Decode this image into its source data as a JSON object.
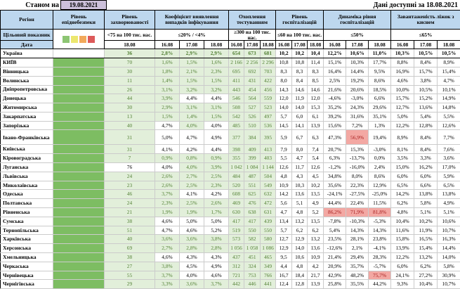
{
  "top": {
    "as_of_label": "Станом на",
    "as_of_date": "19.08.2021",
    "available_label": "Дані доступні за 18.08.2021"
  },
  "colors": {
    "header_blue": "#bdd7ee",
    "purple_date_cell": "#ccc0da",
    "green_cell_bg": "#e2efda",
    "green_cell_text": "#538135",
    "epid_column_green": "#7dbd62",
    "red_cell_bg": "#f3a8a3",
    "red_cell_text": "#a61c1c"
  },
  "table": {
    "region_header": "Регіон",
    "target_header": "Цільовий показник",
    "date_header": "Дата",
    "epid_legend_colors": [
      "#8dc573",
      "#ece76f",
      "#f2a95b",
      "#dd5a5a"
    ],
    "groups": [
      {
        "label": "Рівень епіднебезпеки",
        "target": "",
        "dates": []
      },
      {
        "label": "Рівень захворюваності",
        "target": "<75 на 100 тис. нас.",
        "dates": [
          "18.08"
        ]
      },
      {
        "label": "Коефіцієнт виявлення випадків інфікування",
        "target": "≤20% / <4%",
        "dates": [
          "16.08",
          "17.08",
          "18.08"
        ]
      },
      {
        "label": "Охоплення тестуванням",
        "target": "≥300 на 100 тис. нас.",
        "dates": [
          "16.08",
          "17.08",
          "18.08"
        ]
      },
      {
        "label": "Рівень госпіталізацій",
        "target": "≤60 на 100 тис. нас.",
        "dates": [
          "16.08",
          "17.08",
          "18.08"
        ]
      },
      {
        "label": "Динаміка рівня госпіталізацій",
        "target": "≤50%",
        "dates": [
          "16.08",
          "17.08",
          "18.08"
        ]
      },
      {
        "label": "Завантаженість ліжок з киснем",
        "target": "≤65%",
        "dates": [
          "16.08",
          "17.08",
          "18.08"
        ]
      }
    ],
    "rows": [
      {
        "region": "Україна",
        "bold": true,
        "epid": false,
        "zakhv": "36",
        "zakhv_bg": "g",
        "koef": [
          "2,8%",
          "2,9%",
          "2,9%"
        ],
        "koef_bg": "ggg",
        "test": [
          "654",
          "673",
          "681"
        ],
        "hosp": [
          "10,2",
          "10,2",
          "10,4"
        ],
        "dyn": [
          "12,2%",
          "10,6%",
          "11,0%"
        ],
        "dyn_bg": "www",
        "beds": [
          "10,3%",
          "10,5%",
          "10,5%"
        ]
      },
      {
        "region": "КИЇВ",
        "epid": true,
        "zakhv": "70",
        "zakhv_bg": "g",
        "koef": [
          "1,6%",
          "1,5%",
          "1,6%"
        ],
        "koef_bg": "ggg",
        "test": [
          "2 166",
          "2 256",
          "2 296"
        ],
        "hosp": [
          "10,8",
          "10,8",
          "11,4"
        ],
        "dyn": [
          "15,1%",
          "10,3%",
          "17,7%"
        ],
        "dyn_bg": "www",
        "beds": [
          "8,8%",
          "8,4%",
          "8,9%"
        ]
      },
      {
        "region": "Вінницька",
        "epid": true,
        "zakhv": "30",
        "zakhv_bg": "g",
        "koef": [
          "1,8%",
          "2,1%",
          "2,3%"
        ],
        "koef_bg": "ggg",
        "test": [
          "695",
          "692",
          "703"
        ],
        "hosp": [
          "8,3",
          "8,3",
          "8,3"
        ],
        "dyn": [
          "16,4%",
          "14,4%",
          "9,5%"
        ],
        "dyn_bg": "www",
        "beds": [
          "16,9%",
          "15,7%",
          "15,4%"
        ]
      },
      {
        "region": "Волинська",
        "epid": true,
        "zakhv": "11",
        "zakhv_bg": "g",
        "koef": [
          "1,4%",
          "1,5%",
          "1,5%"
        ],
        "koef_bg": "ggg",
        "test": [
          "411",
          "431",
          "422"
        ],
        "hosp": [
          "8,0",
          "8,4",
          "8,5"
        ],
        "dyn": [
          "2,5%",
          "19,2%",
          "8,6%"
        ],
        "dyn_bg": "www",
        "beds": [
          "4,6%",
          "3,8%",
          "4,7%"
        ]
      },
      {
        "region": "Дніпропетровська",
        "epid": true,
        "zakhv": "26",
        "zakhv_bg": "g",
        "koef": [
          "3,1%",
          "3,2%",
          "3,2%"
        ],
        "koef_bg": "ggg",
        "test": [
          "443",
          "454",
          "456"
        ],
        "hosp": [
          "14,3",
          "14,6",
          "14,6"
        ],
        "dyn": [
          "21,6%",
          "20,6%",
          "18,5%"
        ],
        "dyn_bg": "www",
        "beds": [
          "10,0%",
          "10,5%",
          "10,1%"
        ]
      },
      {
        "region": "Донецька",
        "epid": true,
        "zakhv": "44",
        "zakhv_bg": "g",
        "koef": [
          "3,9%",
          "4,4%",
          "4,4%"
        ],
        "koef_bg": "gww",
        "test": [
          "546",
          "564",
          "559"
        ],
        "hosp": [
          "12,0",
          "11,9",
          "12,0"
        ],
        "dyn": [
          "-4,6%",
          "-3,0%",
          "6,6%"
        ],
        "dyn_bg": "www",
        "beds": [
          "15,7%",
          "15,2%",
          "14,9%"
        ]
      },
      {
        "region": "Житомирська",
        "epid": true,
        "zakhv": "30",
        "zakhv_bg": "g",
        "koef": [
          "2,9%",
          "3,1%",
          "3,1%"
        ],
        "koef_bg": "ggg",
        "test": [
          "508",
          "527",
          "523"
        ],
        "hosp": [
          "14,0",
          "14,0",
          "15,3"
        ],
        "dyn": [
          "35,2%",
          "24,3%",
          "29,6%"
        ],
        "dyn_bg": "www",
        "beds": [
          "12,7%",
          "13,6%",
          "14,8%"
        ]
      },
      {
        "region": "Закарпатська",
        "epid": true,
        "zakhv": "13",
        "zakhv_bg": "g",
        "koef": [
          "1,5%",
          "1,4%",
          "1,5%"
        ],
        "koef_bg": "ggg",
        "test": [
          "542",
          "526",
          "497"
        ],
        "hosp": [
          "5,7",
          "6,0",
          "6,1"
        ],
        "dyn": [
          "39,2%",
          "31,6%",
          "35,1%"
        ],
        "dyn_bg": "www",
        "beds": [
          "5,0%",
          "5,4%",
          "5,5%"
        ]
      },
      {
        "region": "Запорізька",
        "epid": true,
        "zakhv": "40",
        "zakhv_bg": "g",
        "koef": [
          "4,7%",
          "4,0%",
          "4,0%"
        ],
        "koef_bg": "wgw",
        "test": [
          "485",
          "510",
          "536"
        ],
        "hosp": [
          "14,5",
          "14,1",
          "13,9"
        ],
        "dyn": [
          "15,6%",
          "7,2%",
          "1,3%"
        ],
        "dyn_bg": "www",
        "beds": [
          "12,2%",
          "12,8%",
          "12,6%"
        ]
      },
      {
        "region": "Івано-Франківська",
        "tall": true,
        "epid": true,
        "zakhv": "31",
        "zakhv_bg": "g",
        "koef": [
          "5,0%",
          "4,7%",
          "4,9%"
        ],
        "koef_bg": "www",
        "test": [
          "377",
          "384",
          "395"
        ],
        "hosp": [
          "5,9",
          "6,7",
          "6,3"
        ],
        "dyn": [
          "47,3%",
          "56,9%",
          "19,4%"
        ],
        "dyn_bg": "wrw",
        "beds": [
          "8,9%",
          "8,4%",
          "7,7%"
        ]
      },
      {
        "region": "Київська",
        "epid": true,
        "zakhv": "31",
        "zakhv_bg": "g",
        "koef": [
          "4,1%",
          "4,2%",
          "4,4%"
        ],
        "koef_bg": "www",
        "test": [
          "398",
          "409",
          "413"
        ],
        "hosp": [
          "7,9",
          "8,0",
          "7,4"
        ],
        "dyn": [
          "20,7%",
          "15,3%",
          "-3,0%"
        ],
        "dyn_bg": "www",
        "beds": [
          "8,1%",
          "8,4%",
          "7,6%"
        ]
      },
      {
        "region": "Кіровоградська",
        "epid": true,
        "zakhv": "7",
        "zakhv_bg": "g",
        "koef": [
          "0,9%",
          "0,8%",
          "0,9%"
        ],
        "koef_bg": "ggg",
        "test": [
          "355",
          "399",
          "403"
        ],
        "hosp": [
          "5,5",
          "4,7",
          "5,4"
        ],
        "dyn": [
          "6,3%",
          "-13,7%",
          "0,0%"
        ],
        "dyn_bg": "www",
        "beds": [
          "3,5%",
          "3,3%",
          "3,6%"
        ]
      },
      {
        "region": "Луганська",
        "epid": true,
        "zakhv": "76",
        "zakhv_bg": "w",
        "koef": [
          "4,0%",
          "4,0%",
          "3,9%"
        ],
        "koef_bg": "wgg",
        "test": [
          "1 042",
          "1 084",
          "1 144"
        ],
        "hosp": [
          "12,6",
          "11,7",
          "12,6"
        ],
        "dyn": [
          "-1,2%",
          "-16,0%",
          "2,4%"
        ],
        "dyn_bg": "www",
        "beds": [
          "15,0%",
          "16,2%",
          "17,0%"
        ]
      },
      {
        "region": "Львівська",
        "epid": true,
        "zakhv": "24",
        "zakhv_bg": "g",
        "koef": [
          "2,6%",
          "2,7%",
          "2,5%"
        ],
        "koef_bg": "ggg",
        "test": [
          "484",
          "487",
          "504"
        ],
        "hosp": [
          "4,8",
          "4,3",
          "4,5"
        ],
        "dyn": [
          "34,8%",
          "8,0%",
          "8,6%"
        ],
        "dyn_bg": "www",
        "beds": [
          "6,0%",
          "6,0%",
          "5,9%"
        ]
      },
      {
        "region": "Миколаївська",
        "epid": true,
        "zakhv": "23",
        "zakhv_bg": "g",
        "koef": [
          "2,6%",
          "2,5%",
          "2,3%"
        ],
        "koef_bg": "ggg",
        "test": [
          "520",
          "551",
          "549"
        ],
        "hosp": [
          "10,9",
          "10,3",
          "10,2"
        ],
        "dyn": [
          "35,6%",
          "22,3%",
          "12,9%"
        ],
        "dyn_bg": "www",
        "beds": [
          "6,5%",
          "6,6%",
          "6,5%"
        ]
      },
      {
        "region": "Одеська",
        "epid": true,
        "zakhv": "46",
        "zakhv_bg": "g",
        "koef": [
          "3,7%",
          "4,1%",
          "4,2%"
        ],
        "koef_bg": "gww",
        "test": [
          "608",
          "625",
          "632"
        ],
        "hosp": [
          "14,2",
          "13,6",
          "13,5"
        ],
        "dyn": [
          "-24,1%",
          "-27,5%",
          "-25,0%"
        ],
        "dyn_bg": "www",
        "beds": [
          "14,2%",
          "13,8%",
          "13,8%"
        ]
      },
      {
        "region": "Полтавська",
        "epid": true,
        "zakhv": "24",
        "zakhv_bg": "g",
        "koef": [
          "2,3%",
          "2,5%",
          "2,6%"
        ],
        "koef_bg": "ggg",
        "test": [
          "469",
          "476",
          "472"
        ],
        "hosp": [
          "5,6",
          "5,1",
          "4,9"
        ],
        "dyn": [
          "44,4%",
          "22,4%",
          "11,5%"
        ],
        "dyn_bg": "www",
        "beds": [
          "6,2%",
          "5,8%",
          "4,9%"
        ]
      },
      {
        "region": "Рівненська",
        "epid": true,
        "zakhv": "21",
        "zakhv_bg": "g",
        "koef": [
          "1,9%",
          "1,9%",
          "1,7%"
        ],
        "koef_bg": "ggg",
        "test": [
          "630",
          "638",
          "631"
        ],
        "hosp": [
          "4,7",
          "4,8",
          "5,2"
        ],
        "dyn": [
          "86,2%",
          "71,9%",
          "81,8%"
        ],
        "dyn_bg": "rrr",
        "beds": [
          "4,8%",
          "5,1%",
          "5,1%"
        ]
      },
      {
        "region": "Сумська",
        "epid": true,
        "zakhv": "38",
        "zakhv_bg": "g",
        "koef": [
          "4,6%",
          "5,0%",
          "5,0%"
        ],
        "koef_bg": "www",
        "test": [
          "417",
          "417",
          "439"
        ],
        "hosp": [
          "13,4",
          "13,2",
          "13,5"
        ],
        "dyn": [
          "-7,8%",
          "-10,3%",
          "-5,3%"
        ],
        "dyn_bg": "www",
        "beds": [
          "10,4%",
          "10,2%",
          "10,6%"
        ]
      },
      {
        "region": "Тернопільська",
        "epid": true,
        "zakhv": "51",
        "zakhv_bg": "g",
        "koef": [
          "4,7%",
          "4,6%",
          "5,2%"
        ],
        "koef_bg": "www",
        "test": [
          "519",
          "550",
          "550"
        ],
        "hosp": [
          "5,7",
          "6,2",
          "6,2"
        ],
        "dyn": [
          "5,4%",
          "14,3%",
          "14,3%"
        ],
        "dyn_bg": "www",
        "beds": [
          "11,6%",
          "11,9%",
          "10,7%"
        ]
      },
      {
        "region": "Харківська",
        "epid": true,
        "zakhv": "40",
        "zakhv_bg": "g",
        "koef": [
          "3,6%",
          "3,6%",
          "3,8%"
        ],
        "koef_bg": "ggg",
        "test": [
          "573",
          "582",
          "580"
        ],
        "hosp": [
          "12,7",
          "12,9",
          "13,2"
        ],
        "dyn": [
          "23,5%",
          "28,1%",
          "23,8%"
        ],
        "dyn_bg": "www",
        "beds": [
          "15,8%",
          "16,5%",
          "16,3%"
        ]
      },
      {
        "region": "Херсонська",
        "epid": true,
        "zakhv": "69",
        "zakhv_bg": "g",
        "koef": [
          "2,7%",
          "2,8%",
          "2,8%"
        ],
        "koef_bg": "ggg",
        "test": [
          "1 056",
          "1 058",
          "1 086"
        ],
        "hosp": [
          "12,9",
          "14,0",
          "13,6"
        ],
        "dyn": [
          "-12,6%",
          "2,1%",
          "-4,1%"
        ],
        "dyn_bg": "www",
        "beds": [
          "13,9%",
          "15,4%",
          "14,4%"
        ]
      },
      {
        "region": "Хмельницька",
        "epid": true,
        "zakhv": "38",
        "zakhv_bg": "g",
        "koef": [
          "4,6%",
          "4,3%",
          "4,3%"
        ],
        "koef_bg": "www",
        "test": [
          "437",
          "451",
          "465"
        ],
        "hosp": [
          "9,5",
          "10,6",
          "10,9"
        ],
        "dyn": [
          "21,4%",
          "29,4%",
          "28,3%"
        ],
        "dyn_bg": "www",
        "beds": [
          "12,2%",
          "13,2%",
          "14,0%"
        ]
      },
      {
        "region": "Черкаська",
        "epid": true,
        "zakhv": "27",
        "zakhv_bg": "g",
        "koef": [
          "3,8%",
          "4,5%",
          "4,9%"
        ],
        "koef_bg": "gww",
        "test": [
          "312",
          "324",
          "349"
        ],
        "hosp": [
          "4,4",
          "4,8",
          "4,2"
        ],
        "dyn": [
          "20,9%",
          "35,7%",
          "-5,7%"
        ],
        "dyn_bg": "www",
        "beds": [
          "6,0%",
          "6,2%",
          "5,8%"
        ]
      },
      {
        "region": "Чернівецька",
        "epid": true,
        "zakhv": "55",
        "zakhv_bg": "g",
        "koef": [
          "3,7%",
          "4,0%",
          "4,6%"
        ],
        "koef_bg": "gww",
        "test": [
          "721",
          "753",
          "766"
        ],
        "hosp": [
          "16,7",
          "18,4",
          "21,7"
        ],
        "dyn": [
          "42,9%",
          "48,2%",
          "75,7%"
        ],
        "dyn_bg": "wwr",
        "beds": [
          "24,1%",
          "27,2%",
          "30,9%"
        ]
      },
      {
        "region": "Чернігівська",
        "epid": true,
        "zakhv": "29",
        "zakhv_bg": "g",
        "koef": [
          "3,3%",
          "3,6%",
          "3,7%"
        ],
        "koef_bg": "ggg",
        "test": [
          "442",
          "446",
          "441"
        ],
        "hosp": [
          "12,4",
          "12,8",
          "13,9"
        ],
        "dyn": [
          "25,8%",
          "35,5%",
          "44,2%"
        ],
        "dyn_bg": "www",
        "beds": [
          "9,3%",
          "10,4%",
          "10,7%"
        ]
      }
    ]
  }
}
